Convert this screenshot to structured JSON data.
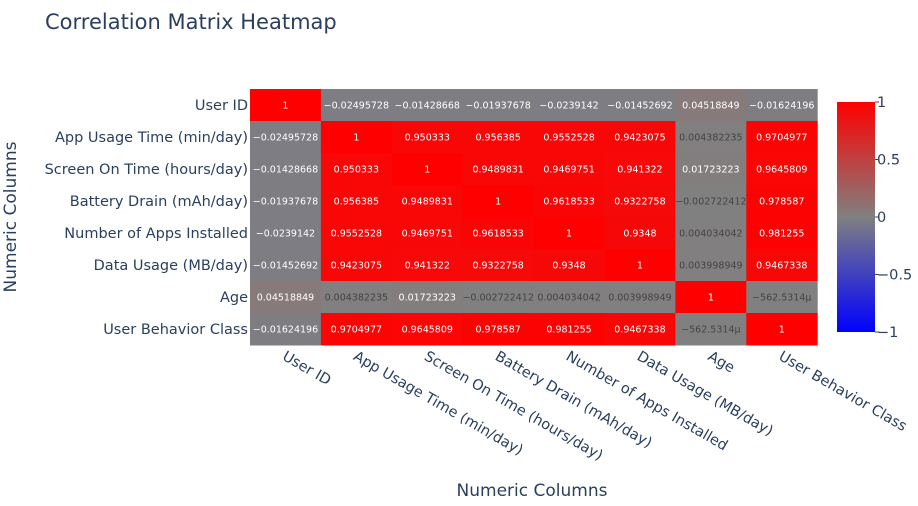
{
  "chart_data": {
    "type": "heatmap",
    "title": "Correlation Matrix Heatmap",
    "xlabel": "Numeric Columns",
    "ylabel": "Numeric Columns",
    "categories": [
      "User ID",
      "App Usage Time (min/day)",
      "Screen On Time (hours/day)",
      "Battery Drain (mAh/day)",
      "Number of Apps Installed",
      "Data Usage (MB/day)",
      "Age",
      "User Behavior Class"
    ],
    "values": [
      [
        1,
        -0.02495728,
        -0.01428668,
        -0.01937678,
        -0.0239142,
        -0.01452692,
        0.04518849,
        -0.01624196
      ],
      [
        -0.02495728,
        1,
        0.950333,
        0.956385,
        0.9552528,
        0.9423075,
        0.004382235,
        0.9704977
      ],
      [
        -0.01428668,
        0.950333,
        1,
        0.9489831,
        0.9469751,
        0.941322,
        0.01723223,
        0.9645809
      ],
      [
        -0.01937678,
        0.956385,
        0.9489831,
        1,
        0.9618533,
        0.9322758,
        -0.002722412,
        0.978587
      ],
      [
        -0.0239142,
        0.9552528,
        0.9469751,
        0.9618533,
        1,
        0.9348,
        0.004034042,
        0.981255
      ],
      [
        -0.01452692,
        0.9423075,
        0.941322,
        0.9322758,
        0.9348,
        1,
        0.003998949,
        0.9467338
      ],
      [
        0.04518849,
        0.004382235,
        0.01723223,
        -0.002722412,
        0.004034042,
        0.003998949,
        1,
        -0.0005625314
      ],
      [
        -0.01624196,
        0.9704977,
        0.9645809,
        0.978587,
        0.981255,
        0.9467338,
        -0.0005625314,
        1
      ]
    ],
    "labels": [
      [
        "1",
        "−0.02495728",
        "−0.01428668",
        "−0.01937678",
        "−0.0239142",
        "−0.01452692",
        "0.04518849",
        "−0.01624196"
      ],
      [
        "−0.02495728",
        "1",
        "0.950333",
        "0.956385",
        "0.9552528",
        "0.9423075",
        "0.004382235",
        "0.9704977"
      ],
      [
        "−0.01428668",
        "0.950333",
        "1",
        "0.9489831",
        "0.9469751",
        "0.941322",
        "0.01723223",
        "0.9645809"
      ],
      [
        "−0.01937678",
        "0.956385",
        "0.9489831",
        "1",
        "0.9618533",
        "0.9322758",
        "−0.002722412",
        "0.978587"
      ],
      [
        "−0.0239142",
        "0.9552528",
        "0.9469751",
        "0.9618533",
        "1",
        "0.9348",
        "0.004034042",
        "0.981255"
      ],
      [
        "−0.01452692",
        "0.9423075",
        "0.941322",
        "0.9322758",
        "0.9348",
        "1",
        "0.003998949",
        "0.9467338"
      ],
      [
        "0.04518849",
        "0.004382235",
        "0.01723223",
        "−0.002722412",
        "0.004034042",
        "0.003998949",
        "1",
        "−562.5314μ"
      ],
      [
        "−0.01624196",
        "0.9704977",
        "0.9645809",
        "0.978587",
        "0.981255",
        "0.9467338",
        "−562.5314μ",
        "1"
      ]
    ],
    "zlim": [
      -1,
      1
    ],
    "colorscale": [
      "#0000ff",
      "#808080",
      "#ff0000"
    ],
    "colorbar": {
      "position": "right",
      "tick_values": [
        1,
        0.5,
        0,
        -0.5,
        -1
      ],
      "tick_labels": [
        "1",
        "0.5",
        "0",
        "−0.5",
        "−1"
      ]
    },
    "grid": false,
    "x_tick_angle": "rotated 30 degrees clockwise"
  }
}
